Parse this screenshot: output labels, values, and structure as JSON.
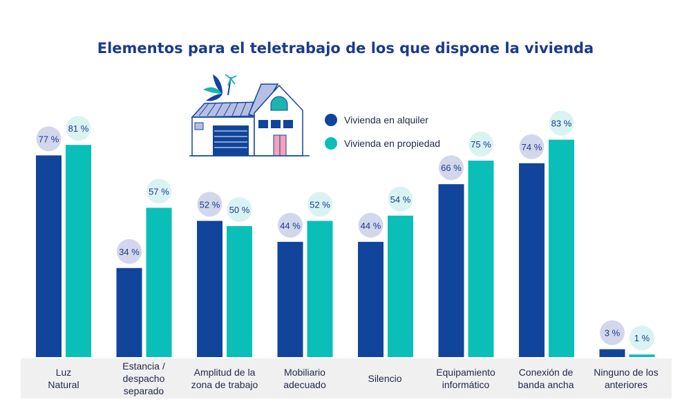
{
  "chart_data": {
    "type": "bar",
    "title": "Elementos para el teletrabajo de los que dispone la vivienda",
    "xlabel": "",
    "ylabel": "",
    "ylim": [
      0,
      100
    ],
    "grid": false,
    "legend_position": "top-center",
    "categories": [
      "Luz\nNatural",
      "Estancia / despacho\nseparado",
      "Amplitud de la\nzona de trabajo",
      "Mobiliario\nadecuado",
      "Silencio",
      "Equipamiento\ninformático",
      "Conexión de\nbanda ancha",
      "Ninguno de los\nanteriores"
    ],
    "series": [
      {
        "name": "Vivienda en alquiler",
        "color": "#11449b",
        "values": [
          77,
          34,
          52,
          44,
          44,
          66,
          74,
          3
        ],
        "labels": [
          "77 %",
          "34 %",
          "52 %",
          "44 %",
          "44 %",
          "66 %",
          "74 %",
          "3 %"
        ]
      },
      {
        "name": "Vivienda en propiedad",
        "color": "#0bbfb9",
        "values": [
          81,
          57,
          50,
          52,
          54,
          75,
          83,
          1
        ],
        "labels": [
          "81 %",
          "57 %",
          "50 %",
          "52 %",
          "54 %",
          "75 %",
          "83 %",
          "1 %"
        ]
      }
    ],
    "bubble_colors": [
      "#d3d7ec",
      "#d9f3f2"
    ],
    "label_band_color": "#f0f0f0"
  }
}
